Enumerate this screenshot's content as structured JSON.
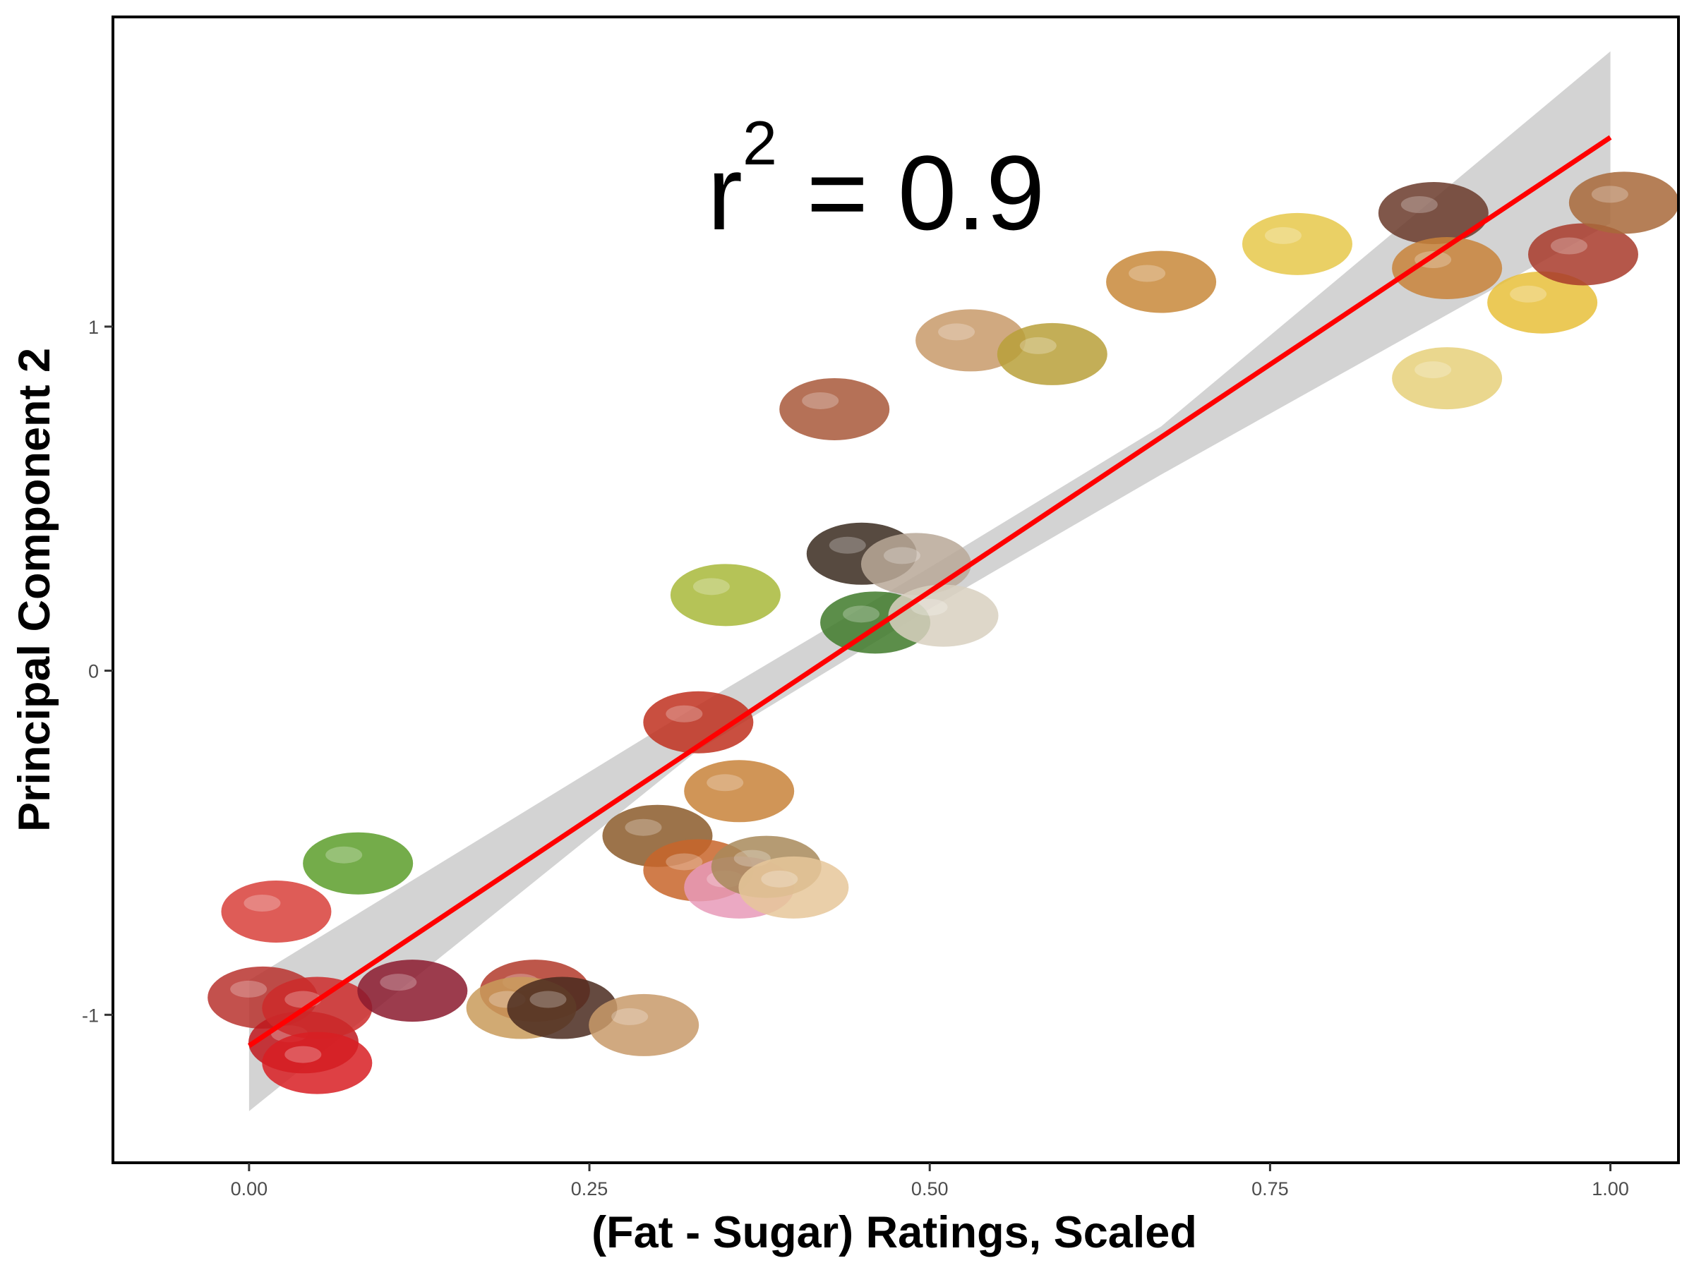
{
  "chart_data": {
    "type": "scatter",
    "xlabel": "(Fat - Sugar) Ratings, Scaled",
    "ylabel": "Principal Component 2",
    "xlim": [
      -0.1,
      1.05
    ],
    "ylim": [
      -1.43,
      1.9
    ],
    "x_ticks": [
      0.0,
      0.25,
      0.5,
      0.75,
      1.0
    ],
    "x_tick_labels": [
      "0.00",
      "0.25",
      "0.50",
      "0.75",
      "1.00"
    ],
    "y_ticks": [
      -1,
      0,
      1
    ],
    "y_tick_labels": [
      "-1",
      "0",
      "1"
    ],
    "grid": false,
    "annotation": {
      "base": "r",
      "superscript": "2",
      "rest": " = 0.9"
    },
    "points": [
      {
        "x": 0.01,
        "y": -0.95,
        "icon": "jellybeans",
        "color": "#b8332e"
      },
      {
        "x": 0.04,
        "y": -1.08,
        "icon": "popsicle",
        "color": "#c0171d"
      },
      {
        "x": 0.05,
        "y": -0.98,
        "icon": "strawberries",
        "color": "#cc2a2a"
      },
      {
        "x": 0.05,
        "y": -1.14,
        "icon": "candy-cane",
        "color": "#d81e23"
      },
      {
        "x": 0.02,
        "y": -0.7,
        "icon": "watermelon",
        "color": "#d8403a"
      },
      {
        "x": 0.08,
        "y": -0.56,
        "icon": "apples",
        "color": "#5c9d2a"
      },
      {
        "x": 0.12,
        "y": -0.93,
        "icon": "grapes",
        "color": "#8b1a2e"
      },
      {
        "x": 0.21,
        "y": -0.93,
        "icon": "cherry-pie",
        "color": "#b23a2a"
      },
      {
        "x": 0.2,
        "y": -0.98,
        "icon": "ice-cream-cone",
        "color": "#c99b5a"
      },
      {
        "x": 0.23,
        "y": -0.98,
        "icon": "chocolate",
        "color": "#4a2a1e"
      },
      {
        "x": 0.29,
        "y": -1.03,
        "icon": "cheesecake",
        "color": "#c89a6a"
      },
      {
        "x": 0.3,
        "y": -0.48,
        "icon": "muffins",
        "color": "#8b5a2a"
      },
      {
        "x": 0.36,
        "y": -0.35,
        "icon": "cinnamon-rolls",
        "color": "#c8833a"
      },
      {
        "x": 0.33,
        "y": -0.58,
        "icon": "donuts",
        "color": "#c8652a"
      },
      {
        "x": 0.36,
        "y": -0.63,
        "icon": "donut-sprinkles",
        "color": "#e89ab8"
      },
      {
        "x": 0.38,
        "y": -0.57,
        "icon": "cookies",
        "color": "#a88a5a"
      },
      {
        "x": 0.4,
        "y": -0.63,
        "icon": "pastry",
        "color": "#e6c79a"
      },
      {
        "x": 0.33,
        "y": -0.15,
        "icon": "tomatoes",
        "color": "#c0301e"
      },
      {
        "x": 0.35,
        "y": 0.22,
        "icon": "zucchini",
        "color": "#a8b83a"
      },
      {
        "x": 0.46,
        "y": 0.14,
        "icon": "broccoli",
        "color": "#3f7a2a"
      },
      {
        "x": 0.45,
        "y": 0.34,
        "icon": "peppercorns",
        "color": "#3a2a1e"
      },
      {
        "x": 0.49,
        "y": 0.31,
        "icon": "mushrooms",
        "color": "#b8a898"
      },
      {
        "x": 0.51,
        "y": 0.16,
        "icon": "cauliflower",
        "color": "#d8d0c0"
      },
      {
        "x": 0.43,
        "y": 0.76,
        "icon": "potatoes",
        "color": "#a8583a"
      },
      {
        "x": 0.53,
        "y": 0.96,
        "icon": "mashed-potatoes",
        "color": "#c89a6a"
      },
      {
        "x": 0.59,
        "y": 0.92,
        "icon": "soup",
        "color": "#b8a03a"
      },
      {
        "x": 0.67,
        "y": 1.13,
        "icon": "grilled-cheese",
        "color": "#c8883a"
      },
      {
        "x": 0.77,
        "y": 1.24,
        "icon": "mac-and-cheese",
        "color": "#e6c84a"
      },
      {
        "x": 0.87,
        "y": 1.33,
        "icon": "sausages",
        "color": "#6a3a2a"
      },
      {
        "x": 0.88,
        "y": 1.17,
        "icon": "onion-rings",
        "color": "#c8833a"
      },
      {
        "x": 0.88,
        "y": 0.85,
        "icon": "potato-chips",
        "color": "#e6d07a"
      },
      {
        "x": 0.95,
        "y": 1.07,
        "icon": "french-fries",
        "color": "#e8c03a"
      },
      {
        "x": 0.98,
        "y": 1.21,
        "icon": "bacon",
        "color": "#a83a2a"
      },
      {
        "x": 1.01,
        "y": 1.36,
        "icon": "fried-chicken",
        "color": "#a8683a"
      }
    ],
    "fit": {
      "x0": 0.0,
      "y0": -1.09,
      "x1": 1.0,
      "y1": 1.55,
      "color": "#ff0000"
    },
    "confidence_band": {
      "lower": [
        [
          0.0,
          -1.28
        ],
        [
          0.33,
          -0.23
        ],
        [
          0.5,
          0.18
        ],
        [
          0.67,
          0.57
        ],
        [
          1.0,
          1.3
        ]
      ],
      "upper": [
        [
          0.0,
          -0.9
        ],
        [
          0.33,
          -0.1
        ],
        [
          0.5,
          0.3
        ],
        [
          0.67,
          0.71
        ],
        [
          1.0,
          1.8
        ]
      ],
      "color": "#d3d3d3"
    }
  }
}
